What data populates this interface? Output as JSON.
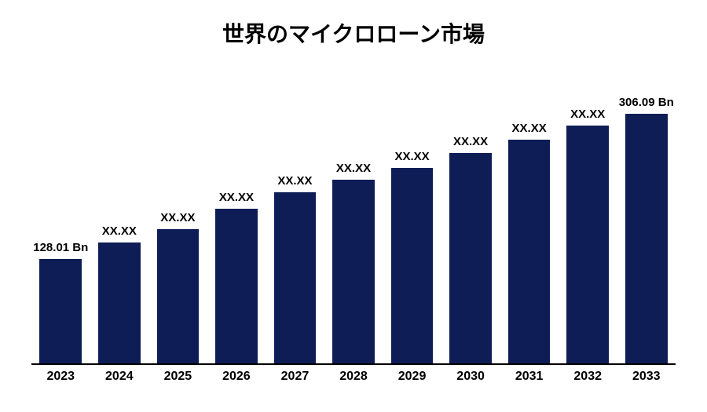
{
  "chart": {
    "type": "bar",
    "title": "世界のマイクロローン市場",
    "title_fontsize": 28,
    "title_color": "#000000",
    "background_color": "#ffffff",
    "bar_color": "#0f1d56",
    "axis_color": "#000000",
    "bar_width_pct": 72,
    "label_fontsize": 15,
    "category_fontsize": 16,
    "y_max": 340,
    "categories": [
      "2023",
      "2024",
      "2025",
      "2026",
      "2027",
      "2028",
      "2029",
      "2030",
      "2031",
      "2032",
      "2033"
    ],
    "values": [
      128.01,
      148,
      165,
      190,
      210,
      225,
      240,
      258,
      275,
      292,
      306.09
    ],
    "value_labels": [
      "128.01 Bn",
      "XX.XX",
      "XX.XX",
      "XX.XX",
      "XX.XX",
      "XX.XX",
      "XX.XX",
      "XX.XX",
      "XX.XX",
      "XX.XX",
      "306.09 Bn"
    ]
  }
}
